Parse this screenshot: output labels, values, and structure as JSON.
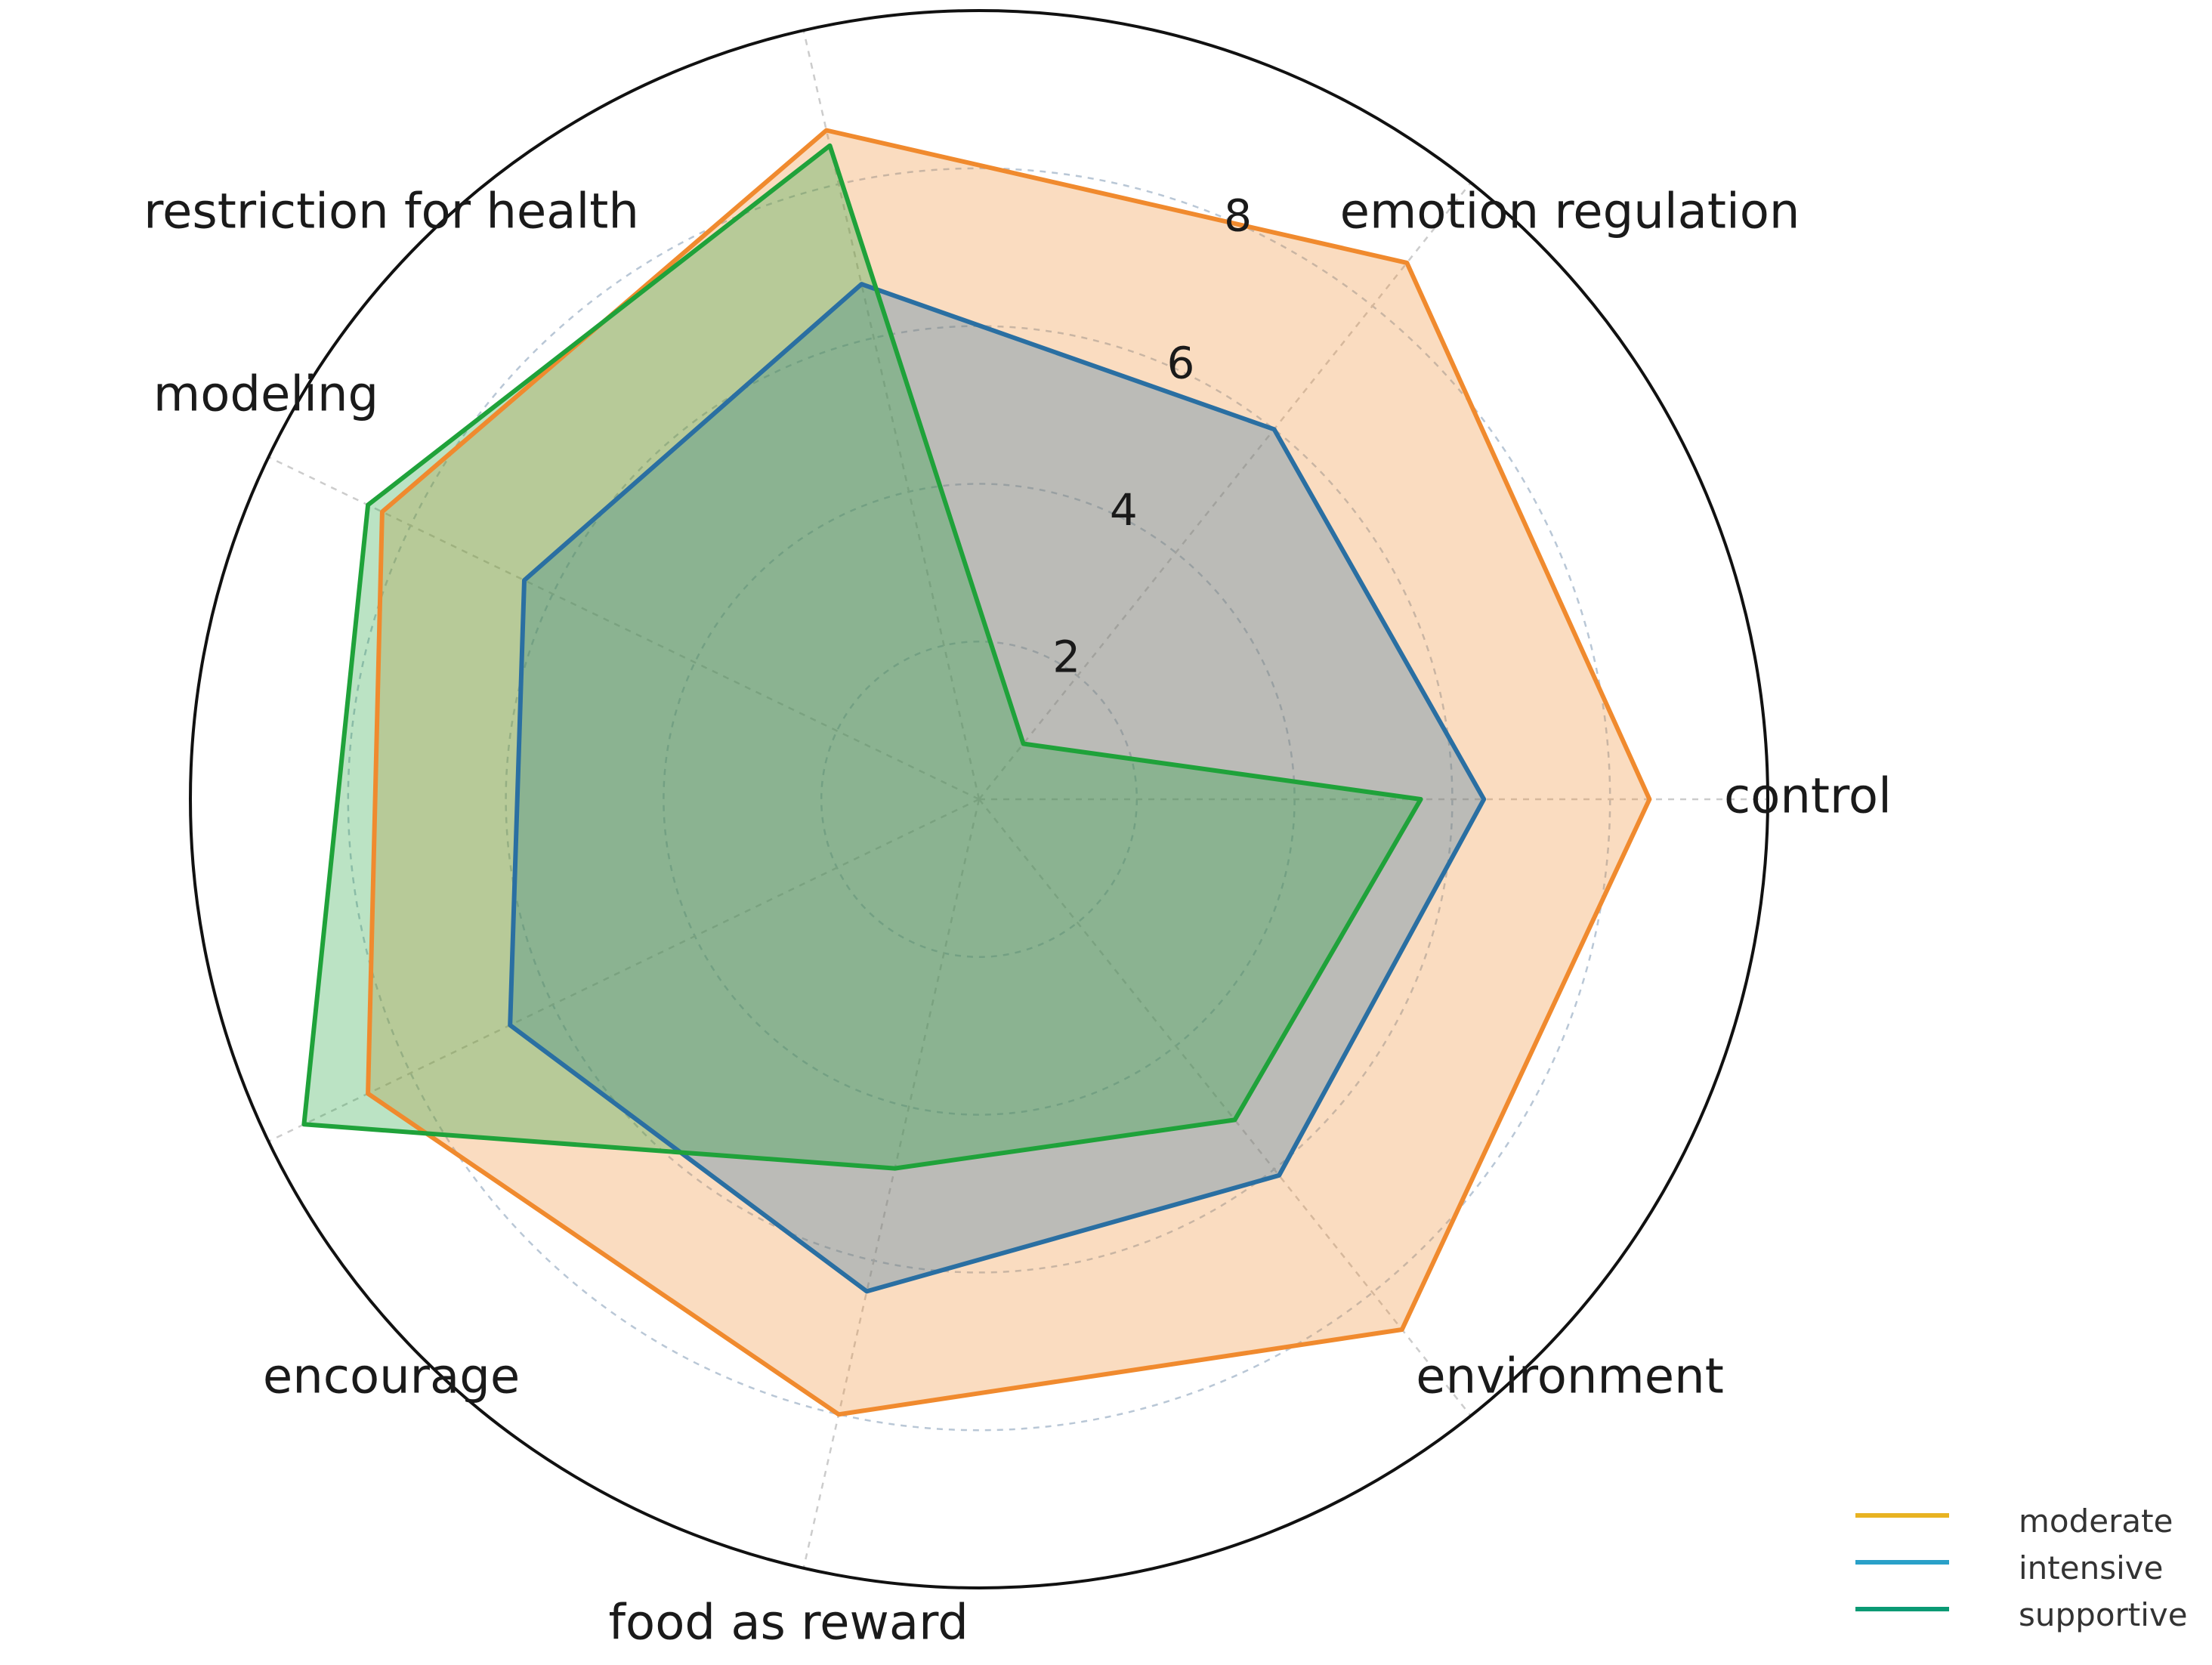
{
  "chart_data": {
    "type": "radar",
    "categories": [
      "control",
      "emotion regulation",
      "restriction for health",
      "modeling",
      "encourage",
      "food as reward",
      "environment"
    ],
    "r_ticks": [
      "2",
      "4",
      "6",
      "8"
    ],
    "r_tick_values": [
      2,
      4,
      6,
      8
    ],
    "rlim": [
      0,
      10
    ],
    "grid": true,
    "legend_position": "bottom-right",
    "series": [
      {
        "name": "moderate",
        "color": "#f08a2e",
        "legend_color": "#e8b322",
        "values": [
          8.5,
          8.7,
          8.7,
          8.4,
          8.6,
          8.0,
          8.6
        ]
      },
      {
        "name": "intensive",
        "color": "#2a6fa2",
        "legend_color": "#2aa0c8",
        "values": [
          6.4,
          6.0,
          6.7,
          6.4,
          6.6,
          6.4,
          6.1
        ]
      },
      {
        "name": "supportive",
        "color": "#1fa23a",
        "legend_color": "#0a9a74",
        "values": [
          5.6,
          0.9,
          8.5,
          8.6,
          9.5,
          4.8,
          5.2
        ]
      }
    ]
  }
}
